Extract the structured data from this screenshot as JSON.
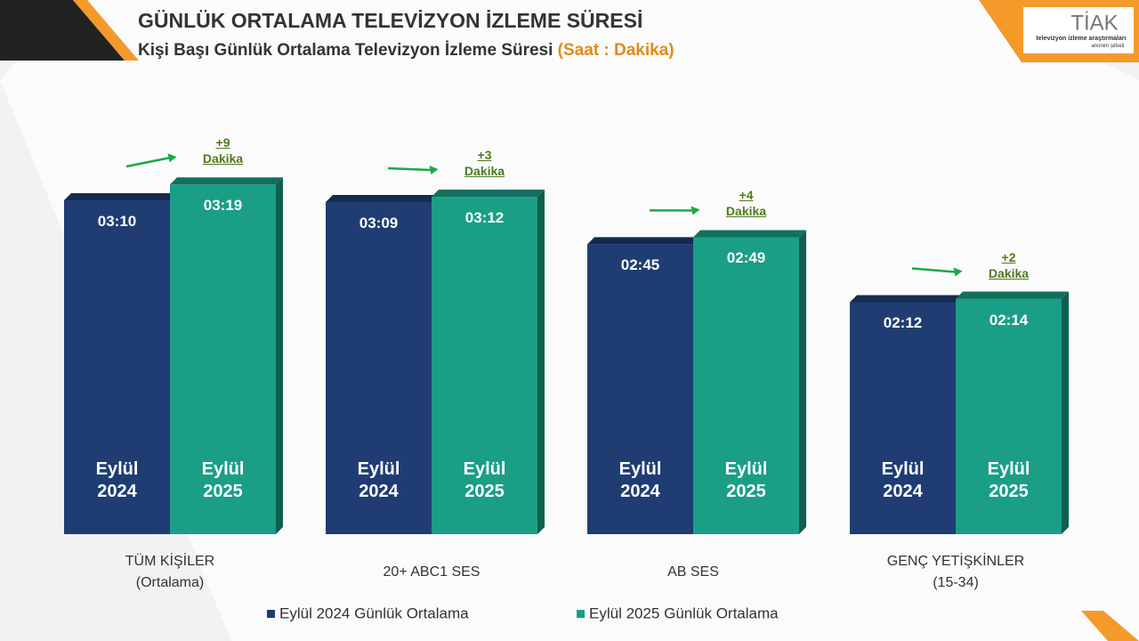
{
  "chart_data": {
    "type": "bar3d",
    "title": "GÜNLÜK ORTALAMA TELEVİZYON İZLEME SÜRESİ",
    "subtitle": "Kişi Başı Günlük Ortalama Televizyon İzleme Süresi",
    "unit_note": "(Saat : Dakika)",
    "logo": {
      "name": "TİAK",
      "line1": "televizyon izleme araştırmaları",
      "line2": "anonim şirketi"
    },
    "categories": [
      "TÜM KİŞİLER\n(Ortalama)",
      "20+ ABC1 SES",
      "AB SES",
      "GENÇ YETİŞKİNLER\n(15-34)"
    ],
    "series": [
      {
        "name": "Eylül 2024 Günlük Ortalama",
        "bar_label": "Eylül\n2024",
        "color": "#1f3d73",
        "values": [
          190,
          189,
          165,
          132
        ],
        "value_labels": [
          "03:10",
          "03:09",
          "02:45",
          "02:12"
        ]
      },
      {
        "name": "Eylül 2025 Günlük Ortalama",
        "bar_label": "Eylül\n2025",
        "color": "#1b9e86",
        "values": [
          199,
          192,
          169,
          134
        ],
        "value_labels": [
          "03:19",
          "03:12",
          "02:49",
          "02:14"
        ]
      }
    ],
    "annotations": [
      "+9\nDakika",
      "+3\nDakika",
      "+4\nDakika",
      "+2\nDakika"
    ],
    "annotation_color": "#4f7a1f"
  }
}
